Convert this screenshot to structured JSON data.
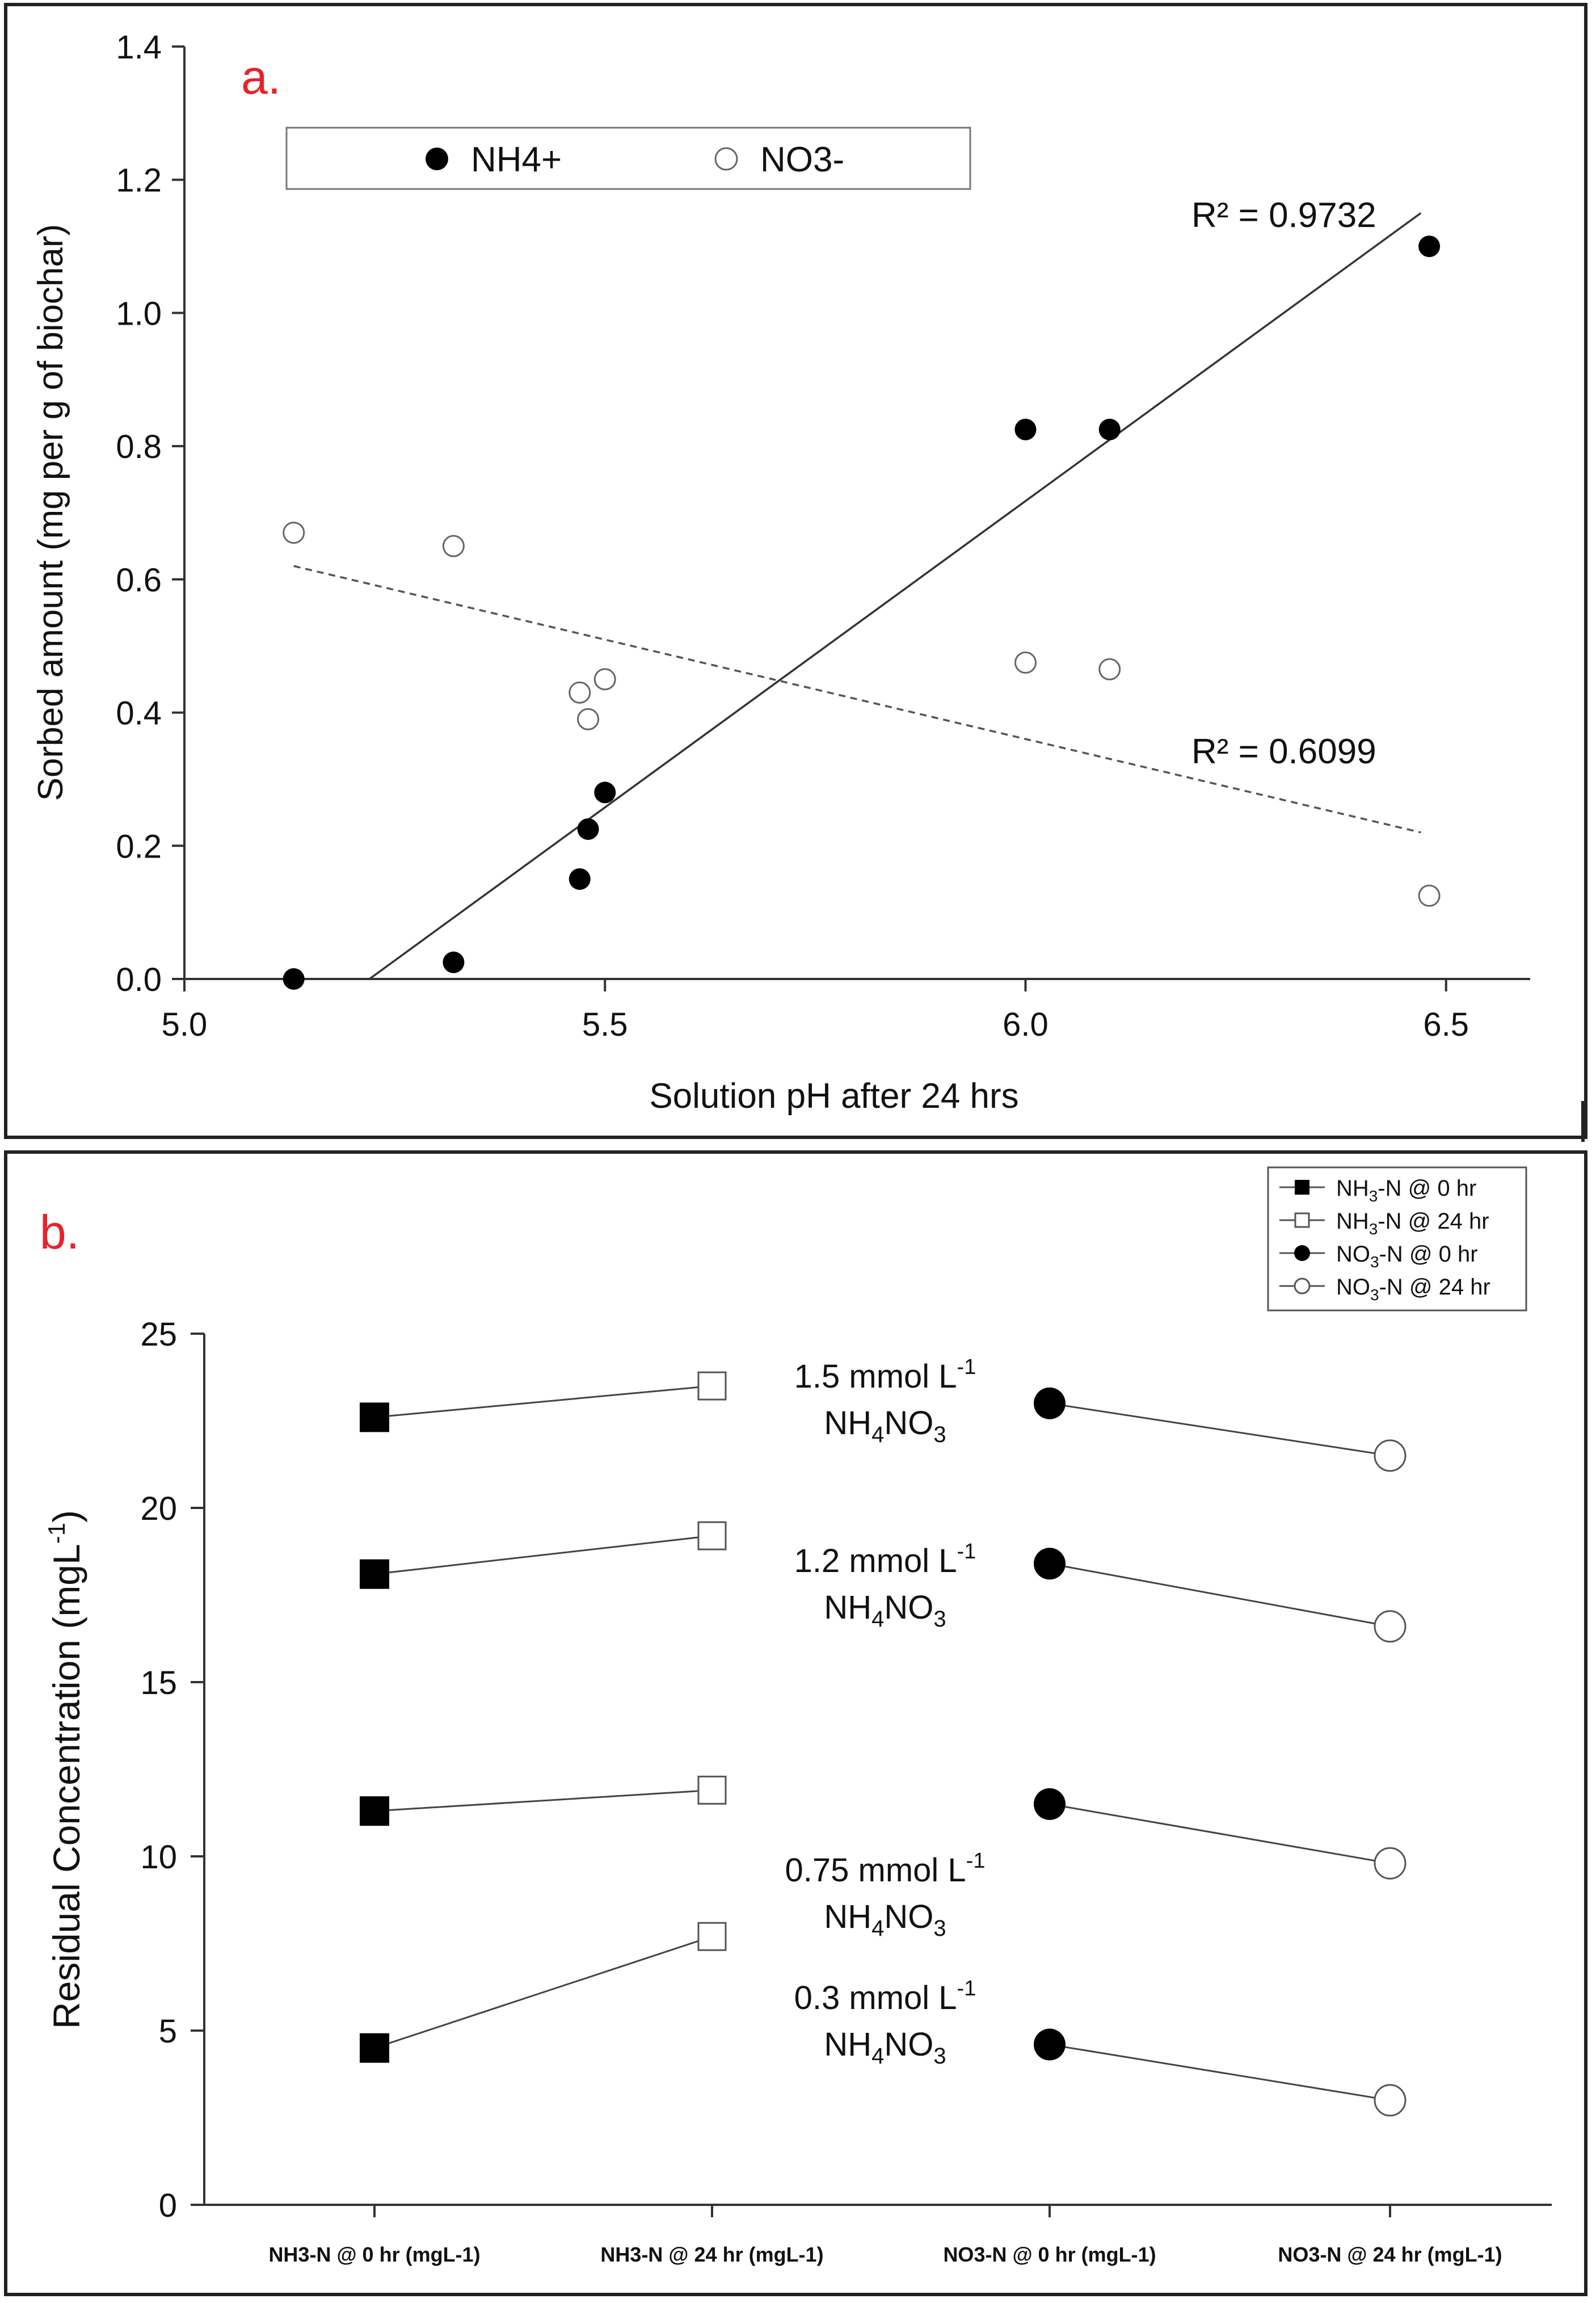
{
  "chart_data": [
    {
      "id": "a",
      "type": "scatter",
      "panel_label": "a.",
      "xlabel": "Solution pH after 24 hrs",
      "ylabel": "Sorbed amount (mg per g of biochar)",
      "xlim": [
        5.0,
        6.6
      ],
      "ylim": [
        0.0,
        1.4
      ],
      "xticks": [
        "5.0",
        "5.5",
        "6.0",
        "6.5"
      ],
      "yticks": [
        "0.0",
        "0.2",
        "0.4",
        "0.6",
        "0.8",
        "1.0",
        "1.2",
        "1.4"
      ],
      "grid": false,
      "legend_position": "top-left",
      "series": [
        {
          "name": "NH4+",
          "marker": "filled-circle",
          "points": [
            [
              5.13,
              0.0
            ],
            [
              5.32,
              0.025
            ],
            [
              5.47,
              0.15
            ],
            [
              5.48,
              0.225
            ],
            [
              5.5,
              0.28
            ],
            [
              6.0,
              0.825
            ],
            [
              6.1,
              0.825
            ],
            [
              6.48,
              1.1
            ]
          ],
          "trend": {
            "x": [
              5.22,
              6.47
            ],
            "y": [
              0.0,
              1.15
            ],
            "style": "solid"
          },
          "r2_label": "R² = 0.9732"
        },
        {
          "name": "NO3-",
          "marker": "open-circle",
          "points": [
            [
              5.13,
              0.67
            ],
            [
              5.32,
              0.65
            ],
            [
              5.47,
              0.43
            ],
            [
              5.48,
              0.39
            ],
            [
              5.5,
              0.45
            ],
            [
              6.0,
              0.475
            ],
            [
              6.1,
              0.465
            ],
            [
              6.48,
              0.125
            ]
          ],
          "trend": {
            "x": [
              5.13,
              6.47
            ],
            "y": [
              0.62,
              0.22
            ],
            "style": "dashed"
          },
          "r2_label": "R² = 0.6099"
        }
      ]
    },
    {
      "id": "b",
      "type": "line",
      "panel_label": "b.",
      "ylabel": "Residual Concentration (mgL",
      "ylabel_sup": "-1",
      "ylabel_close": ")",
      "ylim": [
        0,
        25
      ],
      "yticks": [
        "0",
        "5",
        "10",
        "15",
        "20",
        "25"
      ],
      "categories": [
        "NH3-N @ 0 hr (mgL-1)",
        "NH3-N @ 24 hr (mgL-1)",
        "NO3-N @ 0 hr (mgL-1)",
        "NO3-N @ 24 hr (mgL-1)"
      ],
      "legend": [
        {
          "pre": "NH",
          "sub": "3",
          "post": "-N @ 0 hr",
          "marker": "filled-square"
        },
        {
          "pre": "NH",
          "sub": "3",
          "post": "-N @ 24 hr",
          "marker": "open-square"
        },
        {
          "pre": "NO",
          "sub": "3",
          "post": "-N @ 0 hr",
          "marker": "filled-circle"
        },
        {
          "pre": "NO",
          "sub": "3",
          "post": "-N @ 24 hr",
          "marker": "open-circle"
        }
      ],
      "groups": [
        {
          "conc": "1.5 mmol L",
          "sup": "-1",
          "compound": "NH",
          "sub1": "4",
          "mid": "NO",
          "sub2": "3",
          "nh3": [
            22.6,
            23.5
          ],
          "no3": [
            23.0,
            21.5
          ]
        },
        {
          "conc": "1.2 mmol L",
          "sup": "-1",
          "compound": "NH",
          "sub1": "4",
          "mid": "NO",
          "sub2": "3",
          "nh3": [
            18.1,
            19.2
          ],
          "no3": [
            18.4,
            16.6
          ]
        },
        {
          "conc": "0.75 mmol L",
          "sup": "-1",
          "compound": "NH",
          "sub1": "4",
          "mid": "NO",
          "sub2": "3",
          "nh3": [
            11.3,
            11.9
          ],
          "no3": [
            11.5,
            9.8
          ]
        },
        {
          "conc": "0.3 mmol L",
          "sup": "-1",
          "compound": "NH",
          "sub1": "4",
          "mid": "NO",
          "sub2": "3",
          "nh3": [
            4.5,
            7.7
          ],
          "no3": [
            4.6,
            3.0
          ]
        }
      ]
    }
  ]
}
